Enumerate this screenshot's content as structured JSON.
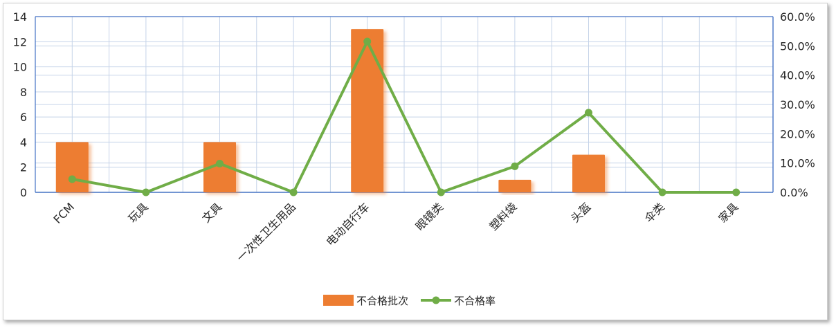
{
  "chart_data": {
    "type": "bar+line",
    "categories": [
      "FCM",
      "玩具",
      "文具",
      "一次性卫生用品",
      "电动自行车",
      "眼镜类",
      "塑料袋",
      "头盔",
      "伞类",
      "家具"
    ],
    "series": [
      {
        "name": "不合格批次",
        "type": "bar",
        "axis": "left",
        "color": "#ED7D31",
        "values": [
          4,
          0,
          4,
          0,
          13,
          0,
          1,
          3,
          0,
          0
        ]
      },
      {
        "name": "不合格率",
        "type": "line",
        "axis": "right",
        "color": "#70AD47",
        "values": [
          4.5,
          0,
          9.8,
          0,
          51.5,
          0,
          8.9,
          27.2,
          0,
          0
        ]
      }
    ],
    "y_left": {
      "min": 0,
      "max": 14,
      "step": 2,
      "ticks": [
        "0",
        "2",
        "4",
        "6",
        "8",
        "10",
        "12",
        "14"
      ]
    },
    "y_right": {
      "min": 0,
      "max": 60,
      "step": 10,
      "ticks": [
        "0.0%",
        "10.0%",
        "20.0%",
        "30.0%",
        "40.0%",
        "50.0%",
        "60.0%"
      ]
    },
    "grid": true,
    "legend_position": "bottom",
    "legend": [
      {
        "label": "不合格批次",
        "kind": "bar",
        "color": "#ED7D31"
      },
      {
        "label": "不合格率",
        "kind": "line",
        "color": "#70AD47"
      }
    ],
    "grid_color": "#C5D3E8",
    "axis_color": "#4472C4"
  }
}
